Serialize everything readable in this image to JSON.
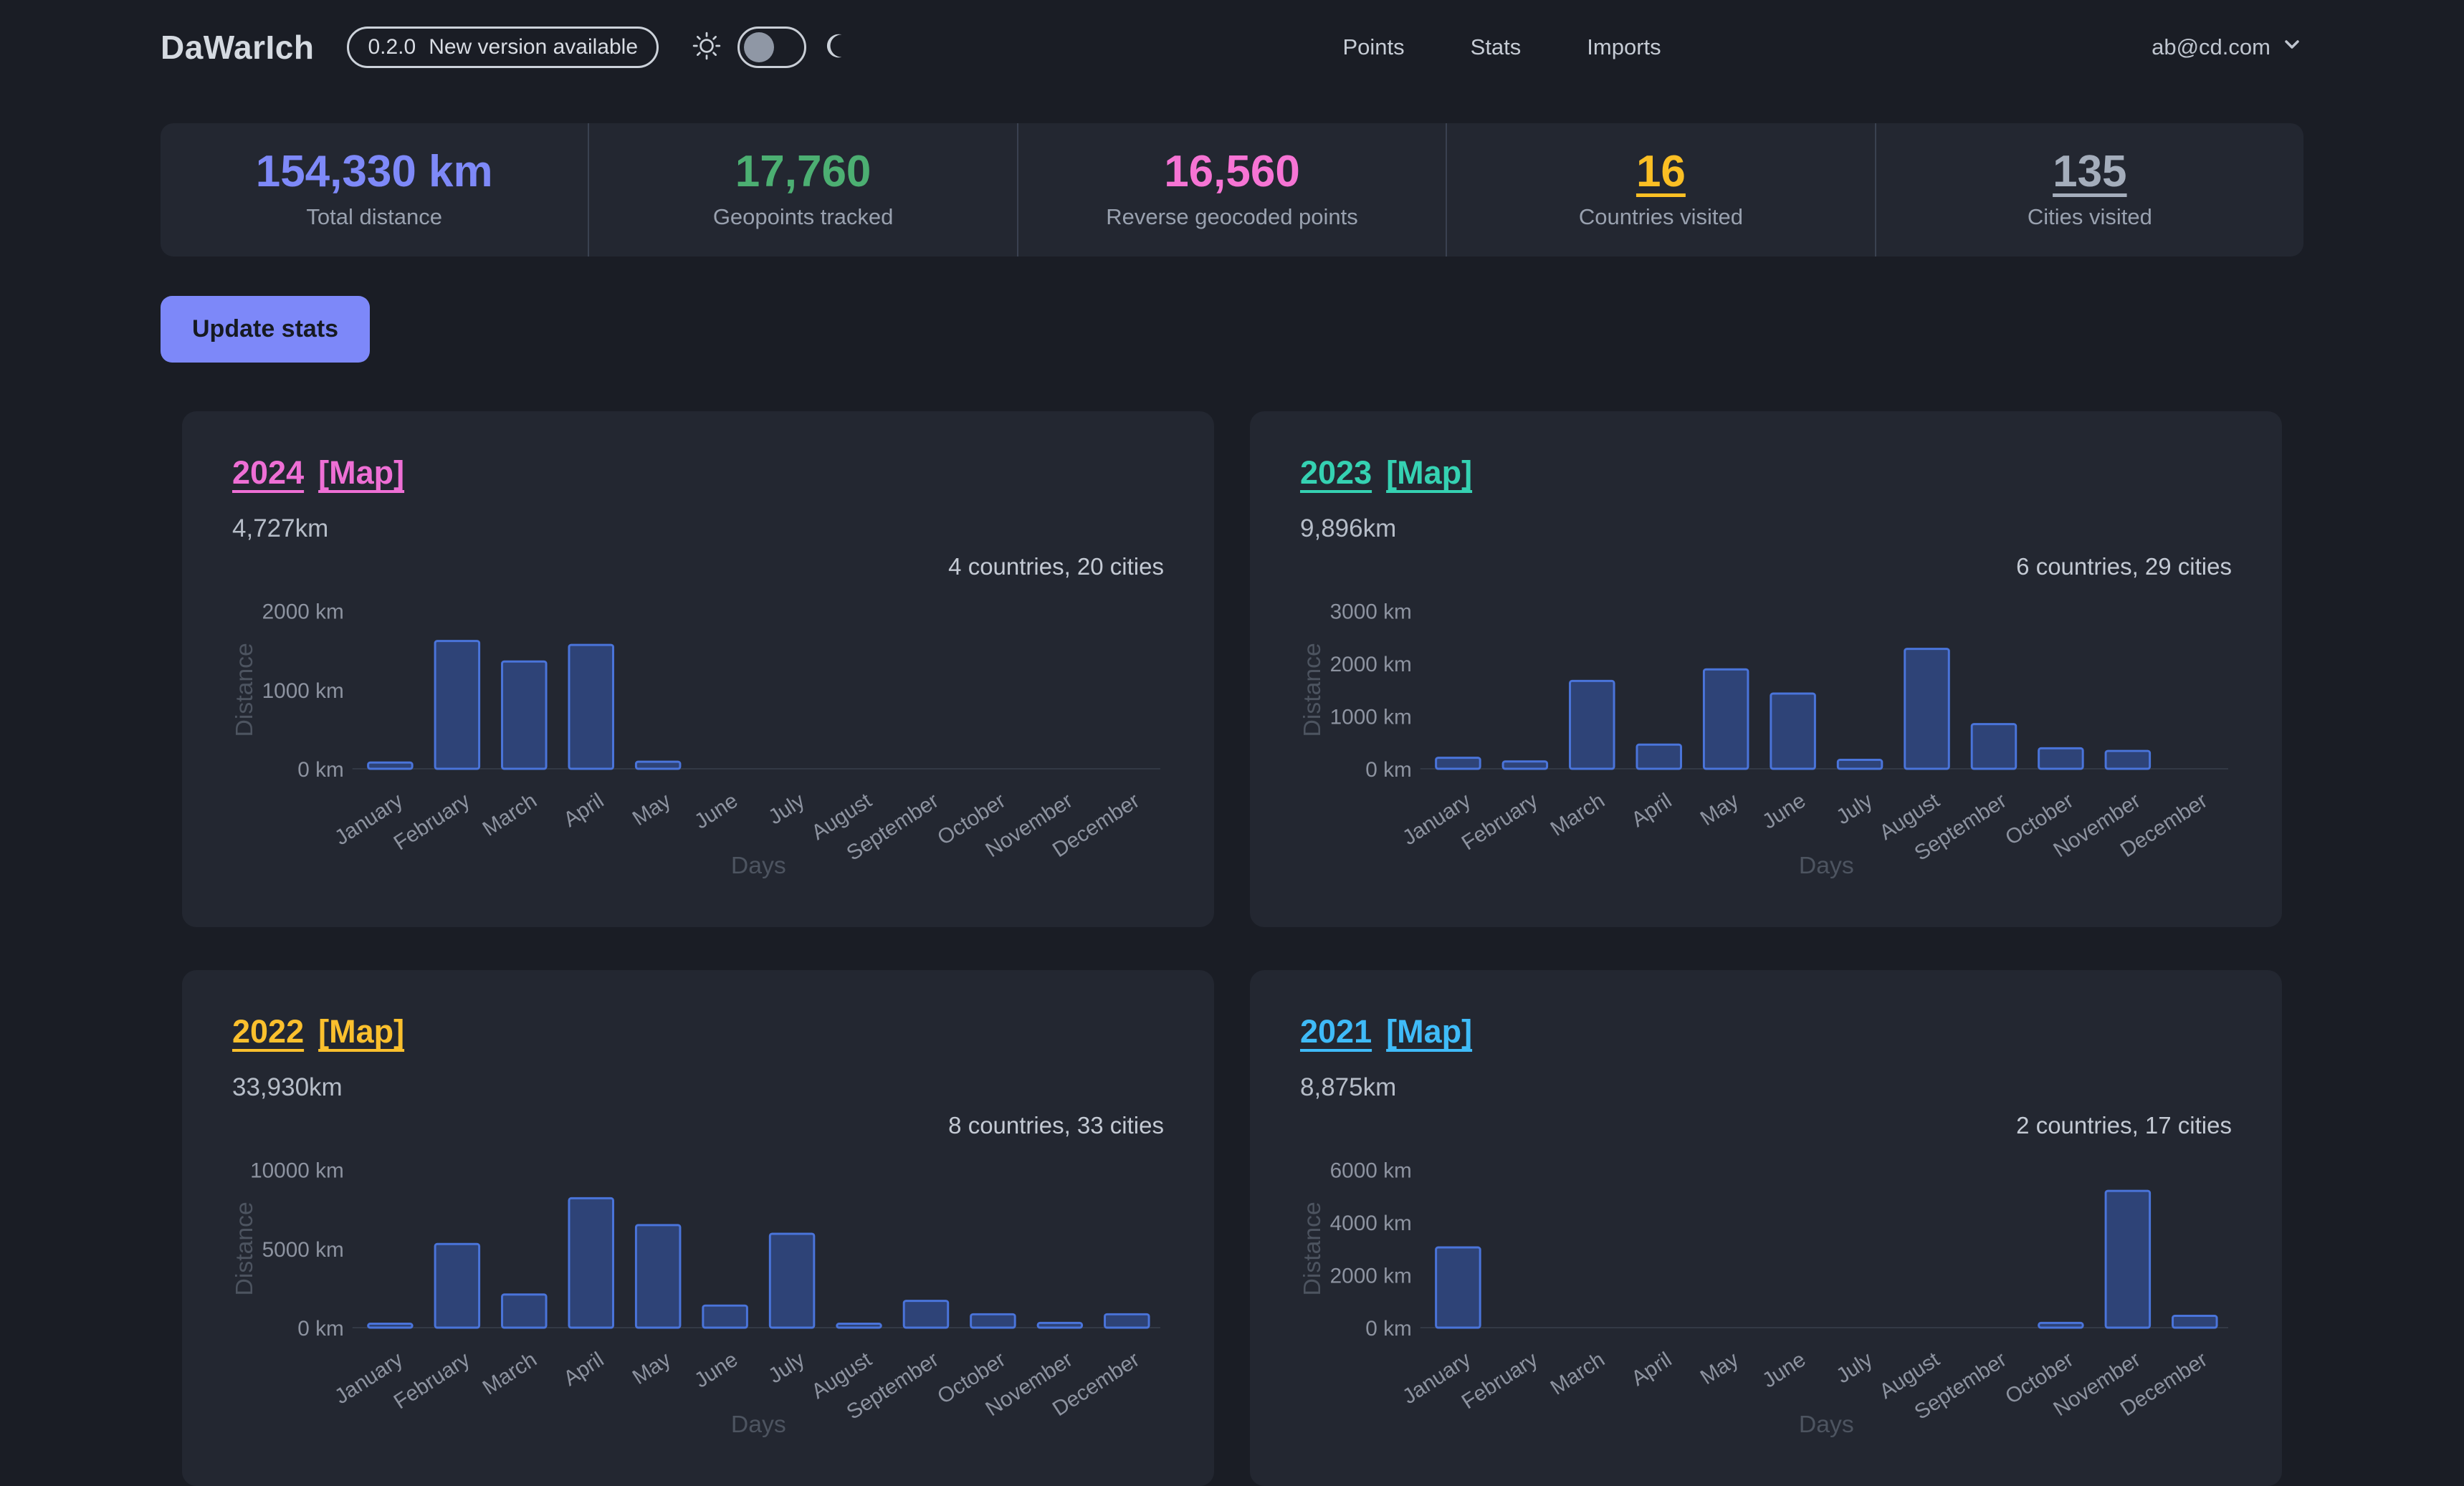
{
  "header": {
    "logo": "DaWarIch",
    "version": "0.2.0",
    "version_message": "New version available",
    "nav": [
      "Points",
      "Stats",
      "Imports"
    ],
    "user_email": "ab@cd.com"
  },
  "summary_stats": [
    {
      "value": "154,330 km",
      "label": "Total distance",
      "color": "#7e89f8",
      "underlined": false
    },
    {
      "value": "17,760",
      "label": "Geopoints tracked",
      "color": "#4caf72",
      "underlined": false
    },
    {
      "value": "16,560",
      "label": "Reverse geocoded points",
      "color": "#f674d4",
      "underlined": false
    },
    {
      "value": "16",
      "label": "Countries visited",
      "color": "#fbbf24",
      "underlined": true
    },
    {
      "value": "135",
      "label": "Cities visited",
      "color": "#a4adbb",
      "underlined": true
    }
  ],
  "update_button_label": "Update stats",
  "months": [
    "January",
    "February",
    "March",
    "April",
    "May",
    "June",
    "July",
    "August",
    "September",
    "October",
    "November",
    "December"
  ],
  "axis": {
    "y_title": "Distance",
    "x_title": "Days",
    "tick_suffix": " km"
  },
  "bar_style": {
    "fill": "#2e4377",
    "border": "#4a74da"
  },
  "cards": [
    {
      "year": "2024",
      "map_label": "[Map]",
      "accent": "#ee6fd5",
      "distance": "4,727km",
      "summary": "4 countries, 20 cities",
      "chart": {
        "type": "bar",
        "ylabel": "Distance",
        "xlabel": "Days",
        "ymax": 2000,
        "yticks": [
          0,
          1000,
          2000
        ],
        "values": [
          80,
          1620,
          1360,
          1570,
          90,
          0,
          0,
          0,
          0,
          0,
          0,
          0
        ]
      }
    },
    {
      "year": "2023",
      "map_label": "[Map]",
      "accent": "#35d1b2",
      "distance": "9,896km",
      "summary": "6 countries, 29 cities",
      "chart": {
        "type": "bar",
        "ylabel": "Distance",
        "xlabel": "Days",
        "ymax": 3000,
        "yticks": [
          0,
          1000,
          2000,
          3000
        ],
        "values": [
          210,
          140,
          1670,
          460,
          1890,
          1430,
          170,
          2280,
          850,
          390,
          340,
          0
        ]
      }
    },
    {
      "year": "2022",
      "map_label": "[Map]",
      "accent": "#fbc02d",
      "distance": "33,930km",
      "summary": "8 countries, 33 cities",
      "chart": {
        "type": "bar",
        "ylabel": "Distance",
        "xlabel": "Days",
        "ymax": 10000,
        "yticks": [
          0,
          5000,
          10000
        ],
        "values": [
          250,
          5300,
          2100,
          8200,
          6500,
          1400,
          5950,
          250,
          1700,
          850,
          300,
          850
        ]
      }
    },
    {
      "year": "2021",
      "map_label": "[Map]",
      "accent": "#3fbbf8",
      "distance": "8,875km",
      "summary": "2 countries, 17 cities",
      "chart": {
        "type": "bar",
        "ylabel": "Distance",
        "xlabel": "Days",
        "ymax": 6000,
        "yticks": [
          0,
          2000,
          4000,
          6000
        ],
        "values": [
          3050,
          0,
          0,
          0,
          0,
          0,
          0,
          0,
          0,
          180,
          5200,
          450
        ]
      }
    }
  ]
}
